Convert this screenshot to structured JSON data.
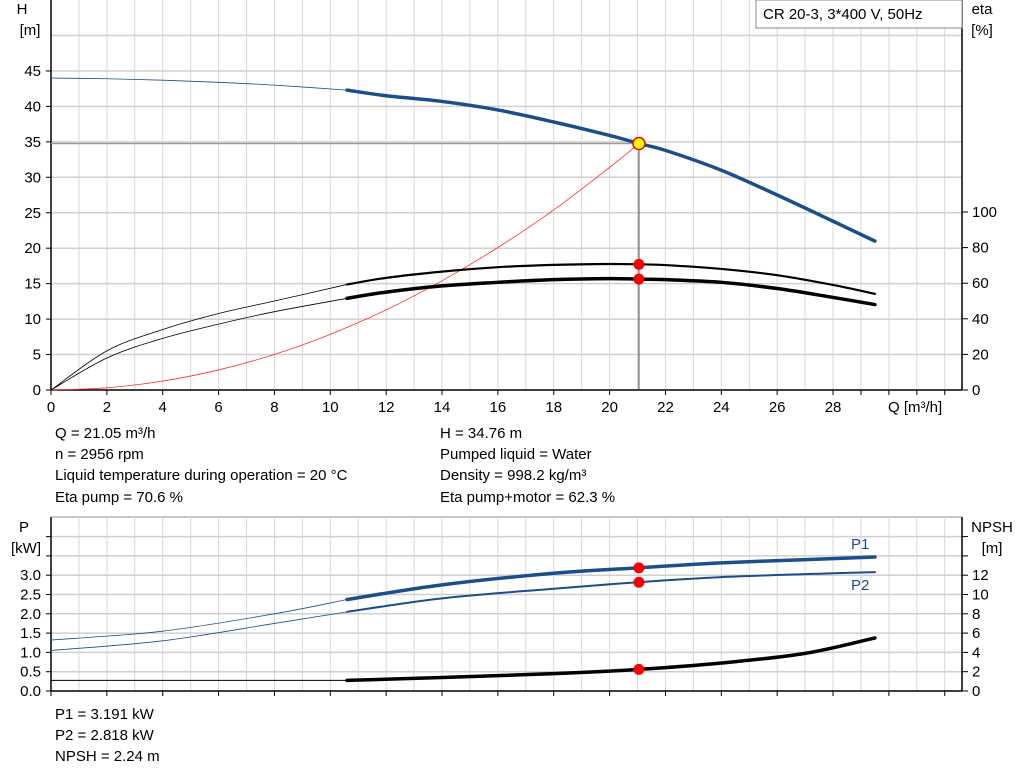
{
  "chart_data": [
    {
      "type": "line",
      "title_box": "CR 20-3, 3*400 V, 50Hz",
      "xlabel": "Q [m³/h]",
      "ylabel_left": [
        "H",
        "[m]"
      ],
      "ylabel_right": [
        "eta",
        "[%]"
      ],
      "xlim": [
        0,
        32
      ],
      "ylim_left": [
        0,
        50
      ],
      "ylim_right": [
        0,
        100
      ],
      "xticks": [
        0,
        2,
        4,
        6,
        8,
        10,
        12,
        14,
        16,
        18,
        20,
        22,
        24,
        26,
        28
      ],
      "yticks_left": [
        0,
        5,
        10,
        15,
        20,
        25,
        30,
        35,
        40,
        45
      ],
      "yticks_right": [
        0,
        20,
        40,
        60,
        80,
        100
      ],
      "grid": true,
      "operating_range_start": 10.6,
      "duty_point": {
        "Q": 21.05,
        "H": 34.76,
        "eta_pump": 70.6,
        "eta_pump_motor": 62.3
      },
      "series": [
        {
          "key": "H",
          "axis": "left",
          "color": "#1a4f8a",
          "x": [
            0,
            2,
            4,
            6,
            8,
            10.6,
            12,
            14,
            16,
            18,
            20,
            21.05,
            22,
            24,
            26,
            28,
            29.5
          ],
          "y": [
            44,
            43.9,
            43.7,
            43.4,
            43,
            42.3,
            41.5,
            40.7,
            39.5,
            37.8,
            35.9,
            34.76,
            33.8,
            31,
            27.5,
            23.8,
            21
          ]
        },
        {
          "key": "eta_pump",
          "axis": "right",
          "color": "#000000",
          "x": [
            0,
            2,
            4,
            6,
            8,
            10.6,
            12,
            14,
            16,
            18,
            20,
            21.05,
            22,
            24,
            26,
            28,
            29.5
          ],
          "y": [
            0,
            22,
            34,
            43,
            50,
            59.3,
            63,
            66.5,
            69,
            70.3,
            70.8,
            70.6,
            70.2,
            68,
            64.5,
            59,
            54
          ]
        },
        {
          "key": "eta_pump_motor",
          "axis": "right",
          "color": "#000000",
          "x": [
            0,
            2,
            4,
            6,
            8,
            10.6,
            12,
            14,
            16,
            18,
            20,
            21.05,
            22,
            24,
            26,
            28,
            29.5
          ],
          "y": [
            0,
            18,
            29,
            37,
            44,
            51.5,
            55,
            58.5,
            60.5,
            62,
            62.6,
            62.3,
            62,
            60.5,
            57,
            52,
            48
          ]
        },
        {
          "key": "system_curve",
          "axis": "left",
          "color": "#ff3030",
          "x": [
            0,
            2,
            4,
            6,
            8,
            10,
            12,
            14,
            16,
            18,
            20,
            21.05
          ],
          "y": [
            0,
            0.31,
            1.26,
            2.83,
            5.02,
            7.85,
            11.3,
            15.4,
            20.1,
            25.4,
            31.4,
            34.76
          ]
        }
      ]
    },
    {
      "type": "line",
      "ylabel_left": [
        "P",
        "[kW]"
      ],
      "ylabel_right": [
        "NPSH",
        "[m]"
      ],
      "xlim": [
        0,
        32
      ],
      "ylim_left": [
        0,
        4.5
      ],
      "ylim_right": [
        0,
        18
      ],
      "yticks_left": [
        "0.0",
        "0.5",
        "1.0",
        "1.5",
        "2.0",
        "2.5",
        "3.0"
      ],
      "yticks_right": [
        0,
        2,
        4,
        6,
        8,
        10,
        12
      ],
      "grid": true,
      "series": [
        {
          "name": "P1",
          "axis": "left",
          "color": "#1a4f8a",
          "x": [
            0,
            4,
            8,
            10.6,
            14,
            18,
            21.05,
            24,
            28,
            29.5
          ],
          "y": [
            1.32,
            1.55,
            2.0,
            2.37,
            2.75,
            3.05,
            3.191,
            3.32,
            3.43,
            3.47
          ]
        },
        {
          "name": "P2",
          "axis": "left",
          "color": "#1a4f8a",
          "x": [
            0,
            4,
            8,
            10.6,
            14,
            18,
            21.05,
            24,
            28,
            29.5
          ],
          "y": [
            1.05,
            1.3,
            1.75,
            2.05,
            2.4,
            2.65,
            2.818,
            2.95,
            3.05,
            3.08
          ]
        },
        {
          "key": "NPSH",
          "axis": "right",
          "color": "#000000",
          "x": [
            0,
            5,
            10.6,
            14,
            18,
            21.05,
            24,
            27,
            29.5
          ],
          "y": [
            1.1,
            1.1,
            1.1,
            1.4,
            1.8,
            2.24,
            2.9,
            3.9,
            5.5
          ]
        }
      ]
    }
  ],
  "info_top": {
    "left": [
      "Q = 21.05 m³/h",
      "n = 2956 rpm",
      "Liquid temperature during operation = 20 °C",
      "Eta pump = 70.6 %"
    ],
    "right": [
      "H = 34.76 m",
      "Pumped liquid = Water",
      "Density = 998.2 kg/m³",
      "Eta pump+motor = 62.3 %"
    ]
  },
  "info_bottom": [
    "P1 = 3.191 kW",
    "P2 = 2.818 kW",
    "NPSH = 2.24 m"
  ]
}
